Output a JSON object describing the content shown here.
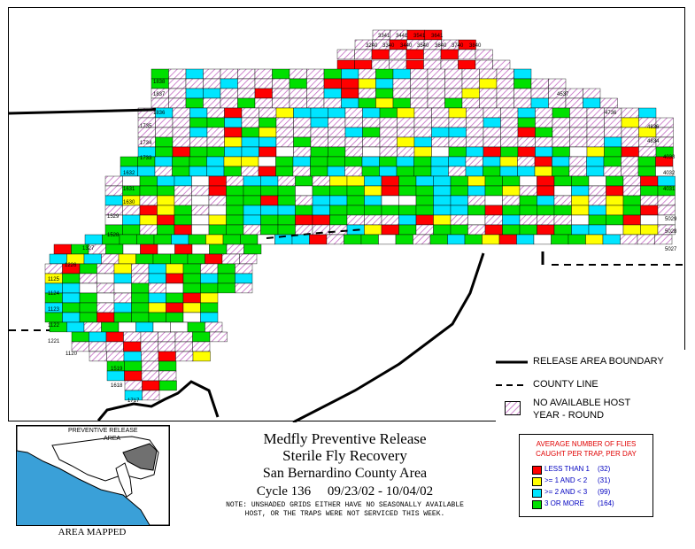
{
  "title": {
    "line1": "Medfly Preventive Release",
    "line2": "Sterile Fly Recovery",
    "line3": "San Bernardino County Area",
    "cycle": "Cycle 136     09/23/02 - 10/04/02",
    "note1": "NOTE: UNSHADED GRIDS EITHER HAVE NO SEASONALLY AVAILABLE",
    "note2": "HOST, OR THE TRAPS WERE NOT SERVICED THIS WEEK."
  },
  "boundary_legend": {
    "release_boundary": "RELEASE AREA BOUNDARY",
    "county_line": "COUNTY LINE",
    "no_host_1": "NO AVAILABLE HOST",
    "no_host_2": "YEAR - ROUND"
  },
  "inset": {
    "label_1": "PREVENTIVE RELEASE",
    "label_2": "AREA",
    "caption": "AREA MAPPED"
  },
  "fly_legend": {
    "header_1": "AVERAGE NUMBER OF FLIES",
    "header_2": "CAUGHT PER TRAP, PER DAY",
    "items": [
      {
        "label": "LESS THAN 1",
        "count": "(32)",
        "color": "#ff0000"
      },
      {
        "label": ">= 1 AND < 2",
        "count": "(31)",
        "color": "#ffff00"
      },
      {
        "label": ">= 2 AND < 3",
        "count": "(99)",
        "color": "#00e5ff"
      },
      {
        "label": "3 OR MORE",
        "count": "(164)",
        "color": "#00e000"
      }
    ]
  },
  "colors": {
    "red": "#ff0000",
    "yellow": "#ffff00",
    "cyan": "#00e5ff",
    "green": "#00e000",
    "hatch": "#c060c0",
    "inset_water": "#3aa0d8",
    "inset_mapped": "#707070"
  },
  "map_grid_labels": {
    "top": [
      "3341",
      "3441",
      "3541",
      "3641",
      "3240",
      "3340",
      "3440",
      "3540",
      "3640",
      "3740",
      "3840"
    ],
    "left_edge": [
      "1838",
      "1837",
      "1836",
      "1735",
      "1734",
      "1733",
      "1632",
      "1631",
      "1630",
      "1529",
      "1528",
      "1327",
      "1226",
      "1125",
      "1124",
      "1123",
      "1122",
      "1221",
      "1120",
      "1519",
      "1618",
      "1717"
    ],
    "right_edge": [
      "4537",
      "4736",
      "4836",
      "4834",
      "4033",
      "4032",
      "4031",
      "5029",
      "5028",
      "5027"
    ]
  }
}
